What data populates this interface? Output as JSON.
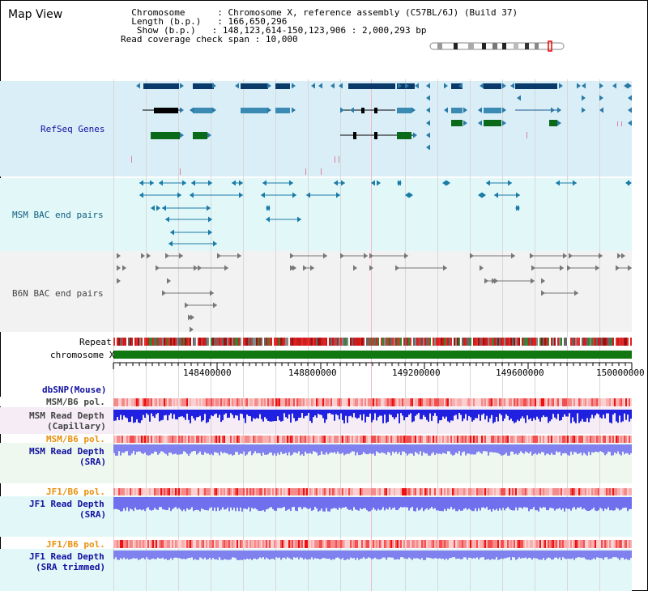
{
  "map_title": "Map View",
  "info": {
    "chromosome_key": "Chromosome",
    "chromosome_value": "Chromosome X, reference assembly (C57BL/6J) (Build 37)",
    "length_key": "Length (b.p.)",
    "length_value": "166,650,296",
    "show_key": "Show (b.p.)",
    "show_value": "148,123,614-150,123,906 : 2,000,293 bp",
    "read_key": "Read coverage check span",
    "read_value": "10,000"
  },
  "tracks": {
    "refseq": "RefSeq Genes",
    "msm_bac": "MSM BAC end pairs",
    "b6n_bac": "B6N BAC end pairs",
    "repeat": "Repeat",
    "chromosome": "chromosome X",
    "dbsnp": "dbSNP(Mouse)",
    "msm_b6_pol": "MSM/B6 pol.",
    "msm_read_cap_1": "MSM Read Depth",
    "msm_read_cap_2": "(Capillary)",
    "msm_b6_pol_2": "MSM/B6 pol.",
    "msm_read_sra_1": "MSM Read Depth",
    "msm_read_sra_2": "(SRA)",
    "jf1_b6_pol": "JF1/B6 pol.",
    "jf1_read_sra_1": "JF1 Read Depth",
    "jf1_read_sra_2": "(SRA)",
    "jf1_b6_pol_2": "JF1/B6 pol.",
    "jf1_read_trim_1": "JF1 Read Depth",
    "jf1_read_trim_2": "(SRA trimmed)"
  },
  "ruler": {
    "ticks": [
      "148400000",
      "148800000",
      "149200000",
      "149600000",
      "150000000"
    ]
  },
  "colors": {
    "refseq_dark": "#0a3a6a",
    "refseq_mid": "#3a8ab4",
    "refseq_green": "#0a6a1a",
    "msm_bac": "#1a7aa8",
    "b6n_bac": "#777777",
    "chromosome_bar": "#117711",
    "depth_blue": "#2020e0",
    "depth_lavender": "#8080ee"
  }
}
